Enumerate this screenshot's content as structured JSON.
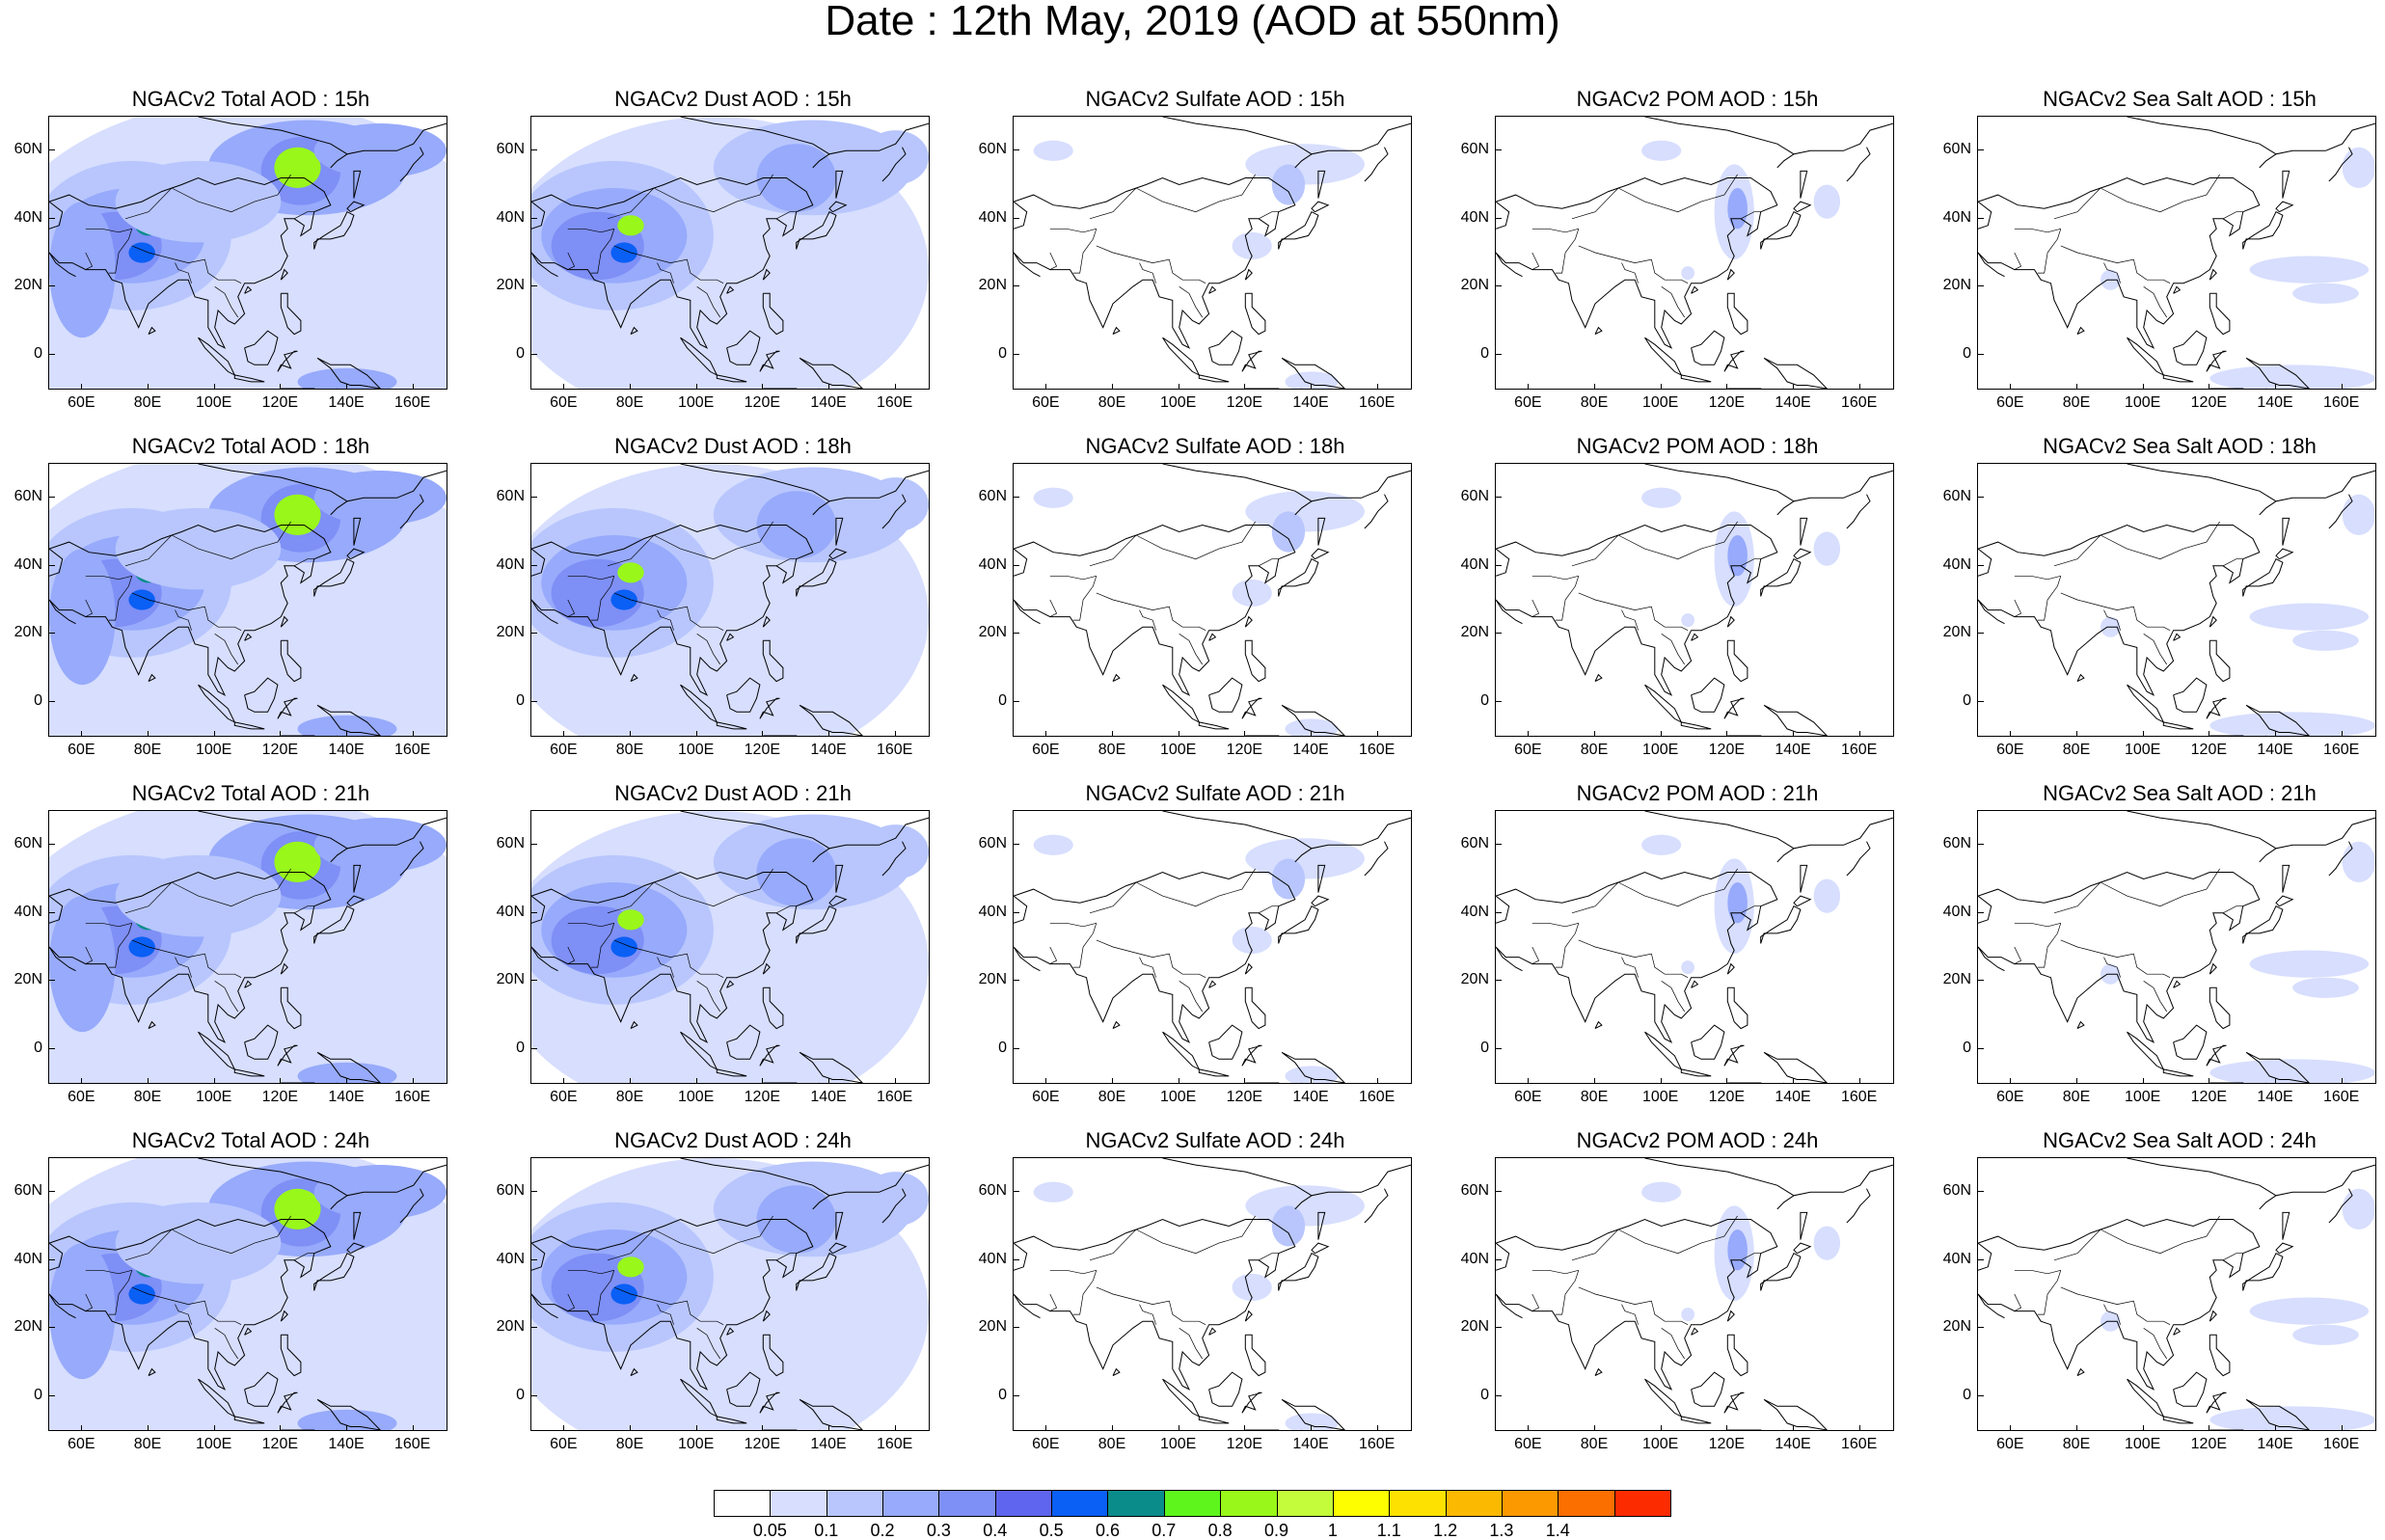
{
  "title": "Date : 12th May, 2019 (AOD at 550nm)",
  "panels": [
    {
      "title": "NGACv2 Total AOD : 15h",
      "species": "total"
    },
    {
      "title": "NGACv2 Dust AOD : 15h",
      "species": "dust"
    },
    {
      "title": "NGACv2 Sulfate AOD : 15h",
      "species": "sulfate"
    },
    {
      "title": "NGACv2 POM AOD : 15h",
      "species": "pom"
    },
    {
      "title": "NGACv2 Sea Salt AOD : 15h",
      "species": "seasalt"
    },
    {
      "title": "NGACv2 Total AOD : 18h",
      "species": "total"
    },
    {
      "title": "NGACv2 Dust AOD : 18h",
      "species": "dust"
    },
    {
      "title": "NGACv2 Sulfate AOD : 18h",
      "species": "sulfate"
    },
    {
      "title": "NGACv2 POM AOD : 18h",
      "species": "pom"
    },
    {
      "title": "NGACv2 Sea Salt AOD : 18h",
      "species": "seasalt"
    },
    {
      "title": "NGACv2 Total AOD : 21h",
      "species": "total"
    },
    {
      "title": "NGACv2 Dust AOD : 21h",
      "species": "dust"
    },
    {
      "title": "NGACv2 Sulfate AOD : 21h",
      "species": "sulfate"
    },
    {
      "title": "NGACv2 POM AOD : 21h",
      "species": "pom"
    },
    {
      "title": "NGACv2 Sea Salt AOD : 21h",
      "species": "seasalt"
    },
    {
      "title": "NGACv2 Total AOD : 24h",
      "species": "total"
    },
    {
      "title": "NGACv2 Dust AOD : 24h",
      "species": "dust"
    },
    {
      "title": "NGACv2 Sulfate AOD : 24h",
      "species": "sulfate"
    },
    {
      "title": "NGACv2 POM AOD : 24h",
      "species": "pom"
    },
    {
      "title": "NGACv2 Sea Salt  AOD : 24h",
      "species": "seasalt"
    }
  ],
  "map": {
    "lon_range": [
      50,
      170
    ],
    "lat_range": [
      -10,
      70
    ],
    "lon_ticks": [
      60,
      80,
      100,
      120,
      140,
      160
    ],
    "lon_tick_labels": [
      "60E",
      "80E",
      "100E",
      "120E",
      "140E",
      "160E"
    ],
    "lat_ticks": [
      60,
      40,
      20,
      0
    ],
    "lat_tick_labels": [
      "60N",
      "40N",
      "20N",
      "0"
    ]
  },
  "colorbar": {
    "colors": [
      "#ffffff",
      "#d7defe",
      "#b8c6fd",
      "#97aafb",
      "#7e8ff6",
      "#5f65ef",
      "#0a5ff5",
      "#0a8d8a",
      "#5ef51d",
      "#99f71a",
      "#c4fb3a",
      "#fffe00",
      "#fde201",
      "#fcb901",
      "#fc9901",
      "#fb6f01",
      "#fd2b00"
    ],
    "labels": [
      "0.05",
      "0.1",
      "0.2",
      "0.3",
      "0.4",
      "0.5",
      "0.6",
      "0.7",
      "0.8",
      "0.9",
      "1",
      "1.1",
      "1.2",
      "1.3",
      "1.4"
    ]
  }
}
